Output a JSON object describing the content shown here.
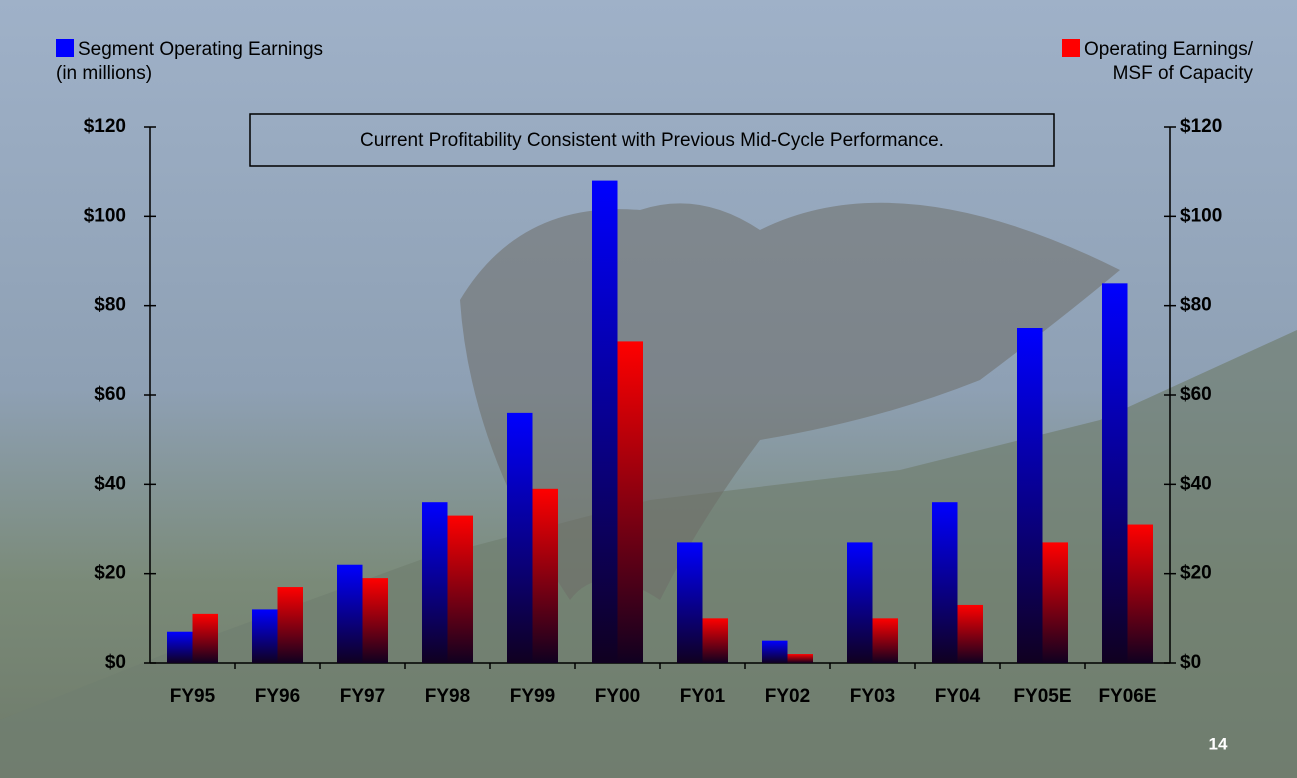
{
  "chart_data": {
    "type": "bar",
    "title": "Current Profitability Consistent with Previous Mid-Cycle Performance.",
    "categories": [
      "FY95",
      "FY96",
      "FY97",
      "FY98",
      "FY99",
      "FY00",
      "FY01",
      "FY02",
      "FY03",
      "FY04",
      "FY05E",
      "FY06E"
    ],
    "series": [
      {
        "name": "Segment Operating Earnings\n(in millions)",
        "color": "#0000ff",
        "values": [
          7,
          12,
          22,
          36,
          56,
          108,
          27,
          5,
          27,
          36,
          75,
          85
        ]
      },
      {
        "name": "Operating Earnings/\nMSF of Capacity",
        "color": "#ff0000",
        "axis": "y2",
        "values": [
          11,
          17,
          19,
          33,
          39,
          72,
          10,
          2,
          10,
          13,
          27,
          31
        ]
      }
    ],
    "ylim": [
      0,
      120
    ],
    "yticks": [
      {
        "value": 0,
        "label": "$0"
      },
      {
        "value": 20,
        "label": "$20"
      },
      {
        "value": 40,
        "label": "$40"
      },
      {
        "value": 60,
        "label": "$60"
      },
      {
        "value": 80,
        "label": "$80"
      },
      {
        "value": 100,
        "label": "$100"
      },
      {
        "value": 120,
        "label": "$120"
      }
    ],
    "y2lim": [
      0,
      120
    ],
    "y2ticks": [
      {
        "value": 0,
        "label": "$0"
      },
      {
        "value": 20,
        "label": "$20"
      },
      {
        "value": 40,
        "label": "$40"
      },
      {
        "value": 60,
        "label": "$60"
      },
      {
        "value": 80,
        "label": "$80"
      },
      {
        "value": 100,
        "label": "$100"
      },
      {
        "value": 120,
        "label": "$120"
      }
    ],
    "page_number": "14"
  }
}
